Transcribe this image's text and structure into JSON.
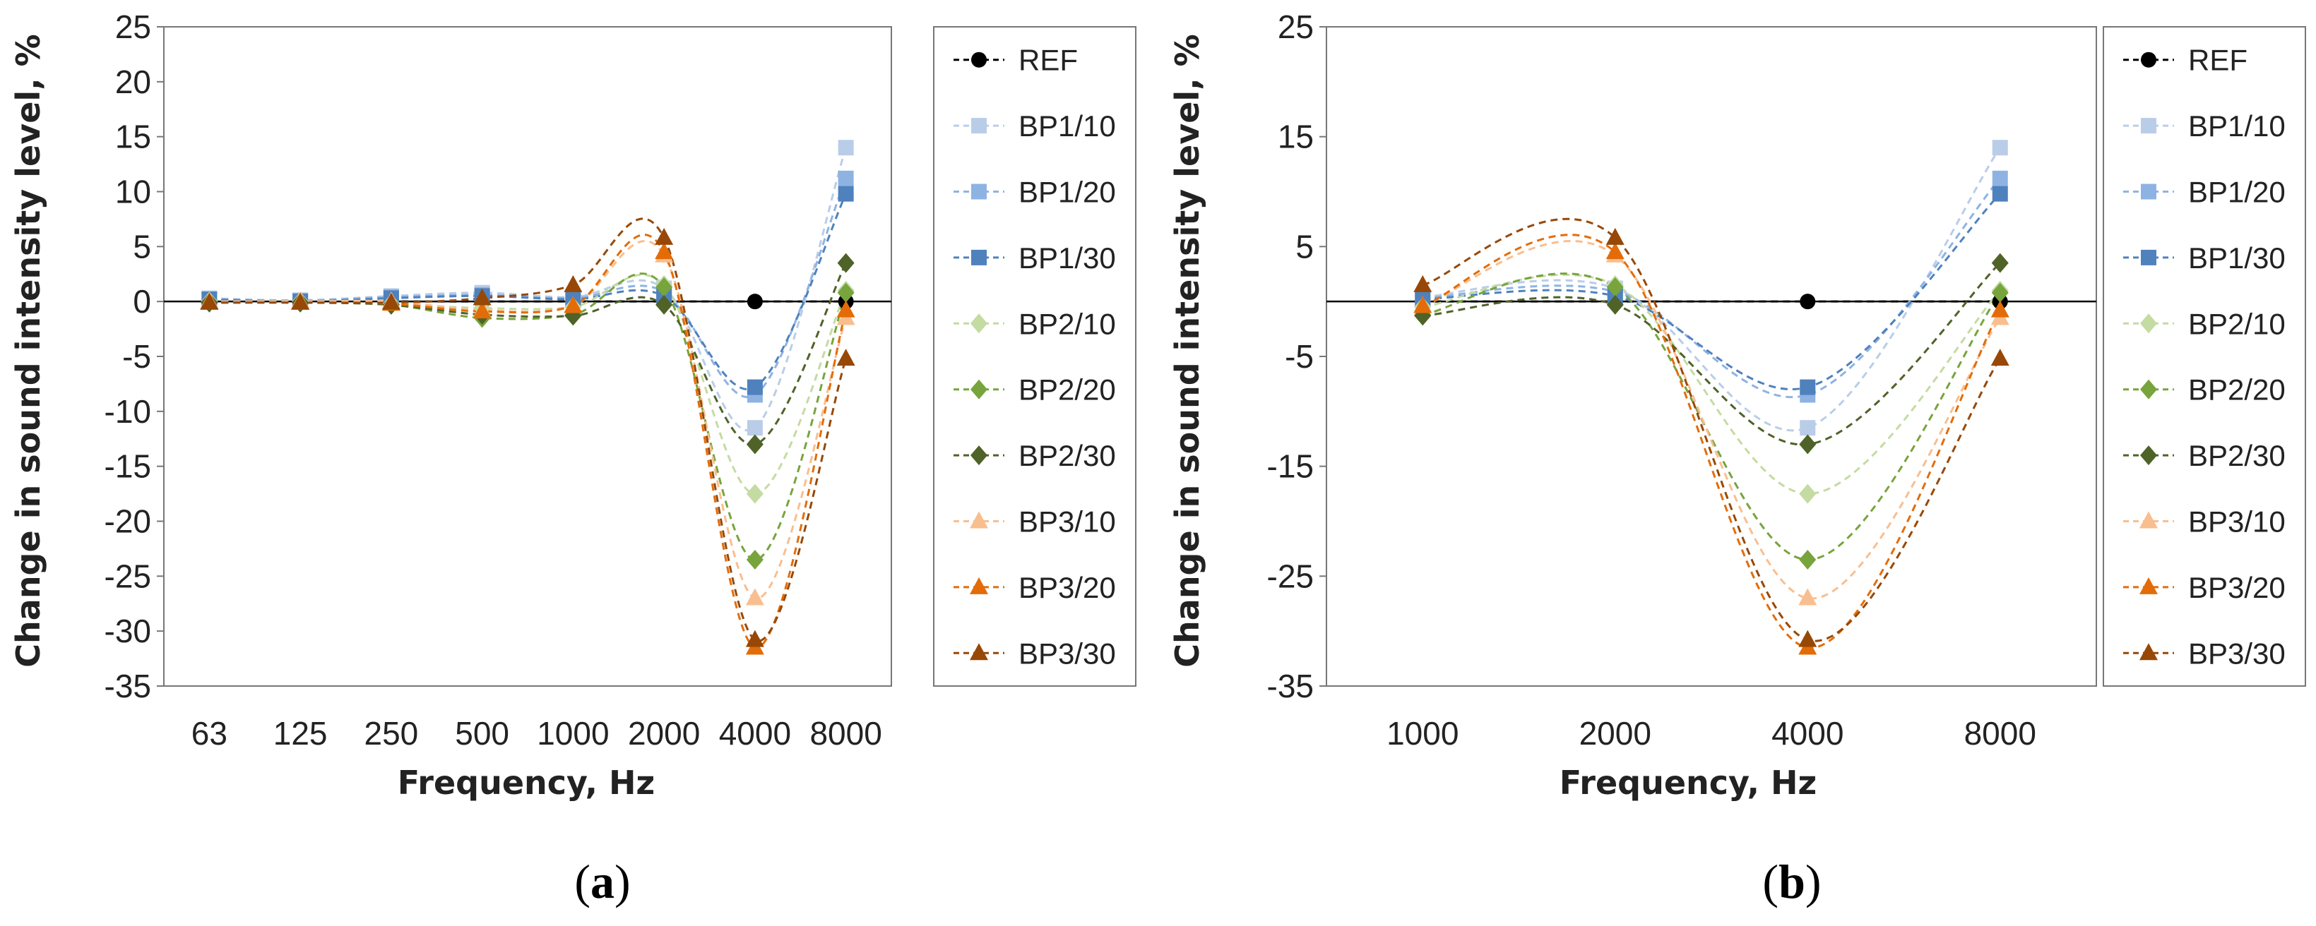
{
  "chart_data": [
    {
      "type": "line",
      "x": [
        "63",
        "125",
        "250",
        "500",
        "1000",
        "2000",
        "4000",
        "8000"
      ],
      "xlabel": "Frequency, Hz",
      "ylabel": "Change in sound intensity level, %",
      "ylim": [
        -35,
        25
      ],
      "yticks": [
        25,
        20,
        15,
        10,
        5,
        0,
        -5,
        -10,
        -15,
        -20,
        -25,
        -30,
        -35
      ],
      "ytick_labels": [
        "25",
        "20",
        "15",
        "10",
        "5",
        "0",
        "-5",
        "-10",
        "-15",
        "-20",
        "-25",
        "-30",
        "-35"
      ],
      "grid": false,
      "legend": "right",
      "panel_label": "a",
      "series": [
        {
          "name": "REF",
          "color": "#000000",
          "marker": "circle",
          "values": [
            0,
            0,
            0,
            0,
            0,
            0,
            0,
            0
          ]
        },
        {
          "name": "BP1/10",
          "color": "#b9cde8",
          "marker": "square",
          "values": [
            0.3,
            0.1,
            0.5,
            0.8,
            0.4,
            1.2,
            -11.5,
            14
          ]
        },
        {
          "name": "BP1/20",
          "color": "#8eb3e3",
          "marker": "square",
          "values": [
            0.2,
            0.1,
            0.4,
            0.6,
            0.3,
            0.9,
            -8.5,
            11.2
          ]
        },
        {
          "name": "BP1/30",
          "color": "#4f81bd",
          "marker": "square",
          "values": [
            0.2,
            0,
            0.3,
            0.5,
            0.2,
            0.5,
            -7.8,
            9.8
          ]
        },
        {
          "name": "BP2/10",
          "color": "#c4dba2",
          "marker": "diamond",
          "values": [
            0,
            0,
            -0.2,
            -0.6,
            -0.5,
            1.5,
            -17.5,
            1
          ]
        },
        {
          "name": "BP2/20",
          "color": "#77a43c",
          "marker": "diamond",
          "values": [
            -0.1,
            -0.1,
            -0.3,
            -1.5,
            -1.2,
            1.3,
            -23.5,
            0.8
          ]
        },
        {
          "name": "BP2/30",
          "color": "#4f6228",
          "marker": "diamond",
          "values": [
            -0.1,
            -0.1,
            -0.3,
            -1.2,
            -1.3,
            -0.3,
            -13,
            3.5
          ]
        },
        {
          "name": "BP3/10",
          "color": "#f9be8f",
          "marker": "triangle",
          "values": [
            0,
            0,
            0,
            -0.8,
            -0.4,
            4.2,
            -27,
            -1.5
          ]
        },
        {
          "name": "BP3/20",
          "color": "#e36c09",
          "marker": "triangle",
          "values": [
            -0.1,
            -0.1,
            -0.2,
            -0.9,
            -0.4,
            4.5,
            -31.5,
            -0.8
          ]
        },
        {
          "name": "BP3/30",
          "color": "#974806",
          "marker": "triangle",
          "values": [
            -0.1,
            -0.1,
            -0.1,
            0.3,
            1.5,
            5.8,
            -30.8,
            -5.2
          ]
        }
      ]
    },
    {
      "type": "line",
      "x": [
        "1000",
        "2000",
        "4000",
        "8000"
      ],
      "xlabel": "Frequency, Hz",
      "ylabel": "Change in sound intensity level, %",
      "ylim": [
        -35,
        25
      ],
      "yticks": [
        25,
        15,
        5,
        -5,
        -15,
        -25,
        -35
      ],
      "ytick_labels": [
        "25",
        "15",
        "5",
        "-5",
        "-15",
        "-25",
        "-35"
      ],
      "grid": false,
      "legend": "right",
      "panel_label": "b",
      "series": [
        {
          "name": "REF",
          "color": "#000000",
          "marker": "circle",
          "values": [
            0,
            0,
            0,
            0
          ]
        },
        {
          "name": "BP1/10",
          "color": "#b9cde8",
          "marker": "square",
          "values": [
            0.4,
            1.2,
            -11.5,
            14
          ]
        },
        {
          "name": "BP1/20",
          "color": "#8eb3e3",
          "marker": "square",
          "values": [
            0.3,
            0.9,
            -8.5,
            11.2
          ]
        },
        {
          "name": "BP1/30",
          "color": "#4f81bd",
          "marker": "square",
          "values": [
            0.2,
            0.5,
            -7.8,
            9.8
          ]
        },
        {
          "name": "BP2/10",
          "color": "#c4dba2",
          "marker": "diamond",
          "values": [
            -0.5,
            1.5,
            -17.5,
            1
          ]
        },
        {
          "name": "BP2/20",
          "color": "#77a43c",
          "marker": "diamond",
          "values": [
            -1.2,
            1.3,
            -23.5,
            0.8
          ]
        },
        {
          "name": "BP2/30",
          "color": "#4f6228",
          "marker": "diamond",
          "values": [
            -1.3,
            -0.3,
            -13,
            3.5
          ]
        },
        {
          "name": "BP3/10",
          "color": "#f9be8f",
          "marker": "triangle",
          "values": [
            -0.4,
            4.2,
            -27,
            -1.5
          ]
        },
        {
          "name": "BP3/20",
          "color": "#e36c09",
          "marker": "triangle",
          "values": [
            -0.4,
            4.5,
            -31.5,
            -0.8
          ]
        },
        {
          "name": "BP3/30",
          "color": "#974806",
          "marker": "triangle",
          "values": [
            1.5,
            5.8,
            -30.8,
            -5.2
          ]
        }
      ]
    }
  ]
}
